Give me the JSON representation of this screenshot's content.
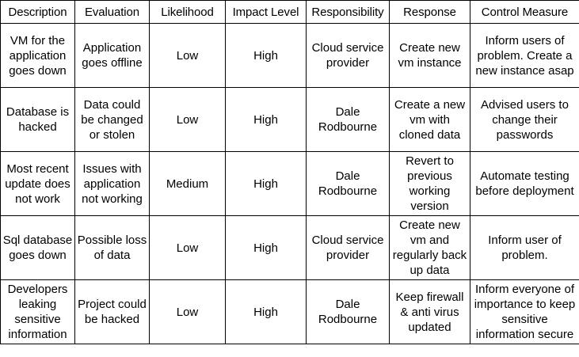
{
  "table": {
    "headers": [
      "Description",
      "Evaluation",
      "Likelihood",
      "Impact Level",
      "Responsibility",
      "Response",
      "Control Measure"
    ],
    "rows": [
      [
        "VM for the application goes down",
        "Application goes offline",
        "Low",
        "High",
        "Cloud service provider",
        "Create new vm instance",
        "Inform users of problem. Create a new instance asap"
      ],
      [
        "Database is hacked",
        "Data could be changed or stolen",
        "Low",
        "High",
        "Dale Rodbourne",
        "Create a new vm with cloned data",
        "Advised users to change their passwords"
      ],
      [
        "Most recent update does not work",
        "Issues with application not working",
        "Medium",
        "High",
        "Dale Rodbourne",
        "Revert to previous working version",
        "Automate testing before deployment"
      ],
      [
        "Sql database goes down",
        "Possible loss of data",
        "Low",
        "High",
        "Cloud service provider",
        "Create new vm and regularly back up data",
        "Inform user of problem."
      ],
      [
        "Developers leaking sensitive information",
        "Project could be hacked",
        "Low",
        "High",
        "Dale Rodbourne",
        "Keep firewall & anti virus updated",
        "Inform everyone of importance to keep sensitive information secure"
      ]
    ]
  }
}
